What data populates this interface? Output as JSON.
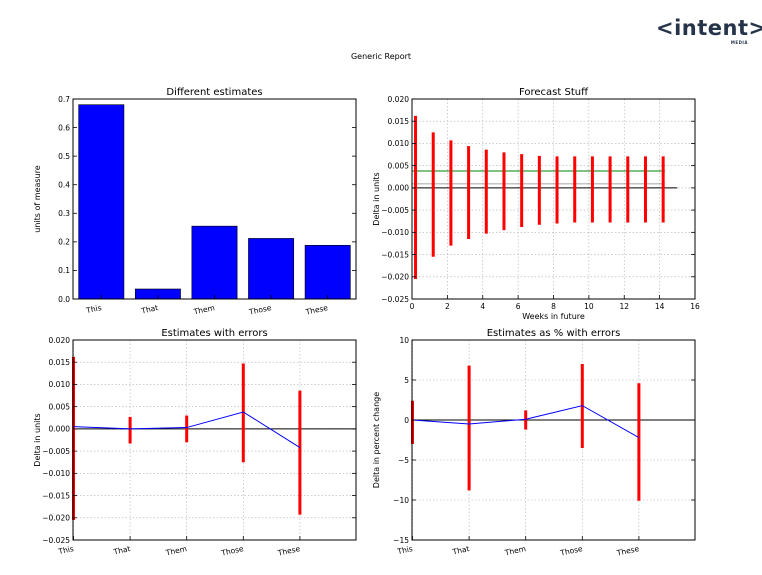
{
  "report_title": "Generic Report",
  "logo": {
    "text": "<intent>",
    "subtext": "MEDIA"
  },
  "colors": {
    "bar": "#0000ff",
    "line": "#0000ff",
    "errorbar": "#ff0000",
    "zero_line": "#000000",
    "threshold_line": "#008000",
    "grid": "#b0b0b0"
  },
  "chart_data": [
    {
      "type": "bar",
      "title": "Different estimates",
      "xlabel": "",
      "ylabel": "units of measure",
      "categories": [
        "This",
        "That",
        "Them",
        "Those",
        "These"
      ],
      "values": [
        0.68,
        0.035,
        0.255,
        0.212,
        0.188
      ],
      "ylim": [
        0,
        0.7
      ],
      "yticks": [
        0.0,
        0.1,
        0.2,
        0.3,
        0.4,
        0.5,
        0.6,
        0.7
      ],
      "ytick_labels": [
        "0.0",
        "0.1",
        "0.2",
        "0.3",
        "0.4",
        "0.5",
        "0.6",
        "0.7"
      ],
      "grid": false
    },
    {
      "type": "line",
      "title": "Forecast Stuff",
      "xlabel": "Weeks in future",
      "ylabel": "Delta in units",
      "xlim": [
        0,
        16
      ],
      "ylim": [
        -0.025,
        0.02
      ],
      "xticks": [
        0,
        2,
        4,
        6,
        8,
        10,
        12,
        14,
        16
      ],
      "xtick_labels": [
        "0",
        "2",
        "4",
        "6",
        "8",
        "10",
        "12",
        "14",
        "16"
      ],
      "yticks": [
        -0.025,
        -0.02,
        -0.015,
        -0.01,
        -0.005,
        0.0,
        0.005,
        0.01,
        0.015,
        0.02
      ],
      "ytick_labels": [
        "−0.025",
        "−0.020",
        "−0.015",
        "−0.010",
        "−0.005",
        "0.000",
        "0.005",
        "0.010",
        "0.015",
        "0.020"
      ],
      "grid": true,
      "x": [
        0.2,
        1.2,
        2.2,
        3.2,
        4.2,
        5.2,
        6.2,
        7.2,
        8.2,
        9.2,
        10.2,
        11.2,
        12.2,
        13.2,
        14.2
      ],
      "lower": [
        -0.0205,
        -0.0155,
        -0.013,
        -0.0115,
        -0.0103,
        -0.0095,
        -0.0088,
        -0.0083,
        -0.008,
        -0.0078,
        -0.0078,
        -0.0078,
        -0.0078,
        -0.0078,
        -0.0078
      ],
      "upper": [
        0.0162,
        0.0125,
        0.0107,
        0.0094,
        0.0086,
        0.008,
        0.0076,
        0.0072,
        0.0071,
        0.0071,
        0.0071,
        0.0071,
        0.0071,
        0.0071,
        0.0071
      ],
      "hlines": [
        {
          "y": 0.0,
          "x0": 0,
          "x1": 15,
          "style": "zero"
        },
        {
          "y": 0.0038,
          "x0": 0,
          "x1": 14.3,
          "style": "threshold"
        },
        {
          "y": 0.0009,
          "x0": 0,
          "x1": 14.3,
          "style": "faint"
        }
      ]
    },
    {
      "type": "line",
      "title": "Estimates with errors",
      "xlabel": "",
      "ylabel": "Delta in units",
      "categories": [
        "This",
        "That",
        "Them",
        "Those",
        "These"
      ],
      "values": [
        0.0005,
        0.0,
        0.0003,
        0.0038,
        -0.0042
      ],
      "lower": [
        -0.0205,
        -0.0033,
        -0.003,
        -0.0075,
        -0.0193
      ],
      "upper": [
        0.0162,
        0.0027,
        0.003,
        0.0147,
        0.0086
      ],
      "ylim": [
        -0.025,
        0.02
      ],
      "yticks": [
        -0.025,
        -0.02,
        -0.015,
        -0.01,
        -0.005,
        0.0,
        0.005,
        0.01,
        0.015,
        0.02
      ],
      "ytick_labels": [
        "−0.025",
        "−0.020",
        "−0.015",
        "−0.010",
        "−0.005",
        "0.000",
        "0.005",
        "0.010",
        "0.015",
        "0.020"
      ],
      "grid": true
    },
    {
      "type": "line",
      "title": "Estimates as % with errors",
      "xlabel": "",
      "ylabel": "Delta in percent change",
      "categories": [
        "This",
        "That",
        "Them",
        "Those",
        "These"
      ],
      "values": [
        0.0,
        -0.5,
        0.1,
        1.8,
        -2.2
      ],
      "lower": [
        -3.0,
        -8.8,
        -1.2,
        -3.5,
        -10.1
      ],
      "upper": [
        2.4,
        6.8,
        1.2,
        7.0,
        4.6
      ],
      "ylim": [
        -15,
        10
      ],
      "yticks": [
        -15,
        -10,
        -5,
        0,
        5,
        10
      ],
      "ytick_labels": [
        "−15",
        "−10",
        "−5",
        "0",
        "5",
        "10"
      ],
      "grid": true
    }
  ]
}
